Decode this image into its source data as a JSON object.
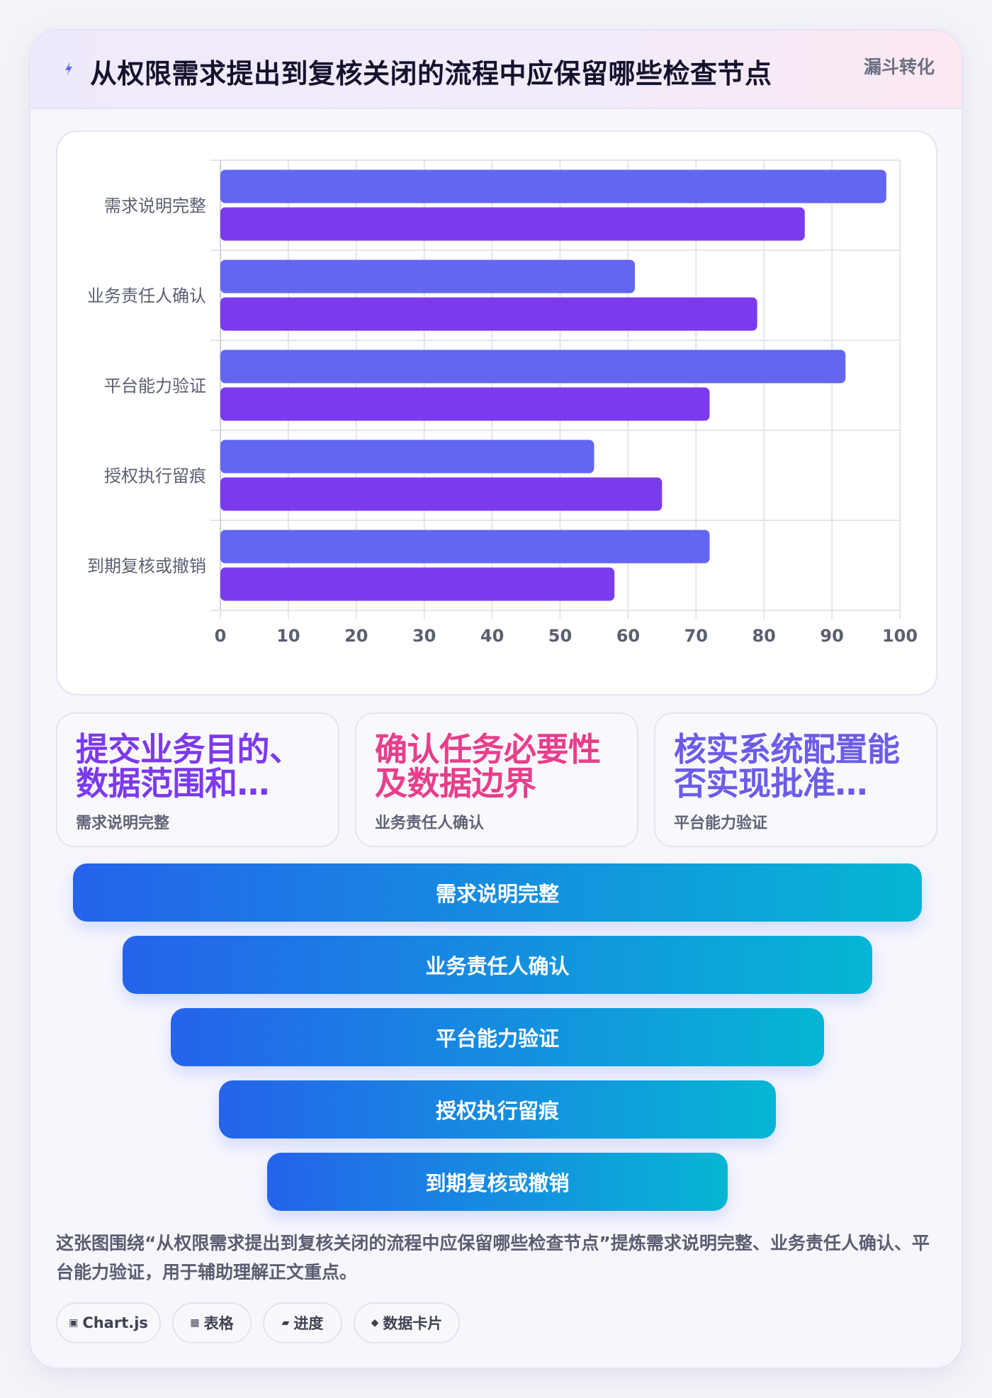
{
  "header": {
    "icon": "bolt-icon",
    "title": "从权限需求提出到复核关闭的流程中应保留哪些检查节点",
    "tag": "漏斗转化"
  },
  "chart_data": {
    "type": "bar",
    "orientation": "horizontal",
    "categories": [
      "需求说明完整",
      "业务责任人确认",
      "平台能力验证",
      "授权执行留痕",
      "到期复核或撤销"
    ],
    "series": [
      {
        "values": [
          98,
          61,
          92,
          55,
          72
        ],
        "color": "#6366f1"
      },
      {
        "values": [
          86,
          79,
          72,
          65,
          58
        ],
        "color": "#7c3aed"
      }
    ],
    "xlim": [
      0,
      100
    ],
    "x_ticks": [
      0,
      10,
      20,
      30,
      40,
      50,
      60,
      70,
      80,
      90,
      100
    ],
    "grid": true,
    "legend": "none"
  },
  "stats": [
    {
      "value": "提交业务目的、数据范围和…",
      "label": "需求说明完整",
      "color": "#7c3aed"
    },
    {
      "value": "确认任务必要性及数据边界",
      "label": "业务责任人确认",
      "color": "#e83e8c"
    },
    {
      "value": "核实系统配置能否实现批准…",
      "label": "平台能力验证",
      "color": "#6d5ce8"
    }
  ],
  "funnel": {
    "steps": [
      "需求说明完整",
      "业务责任人确认",
      "平台能力验证",
      "授权执行留痕",
      "到期复核或撤销"
    ],
    "gradient": [
      "#2563eb",
      "#06b6d4"
    ]
  },
  "summary": "这张图围绕“从权限需求提出到复核关闭的流程中应保留哪些检查节点”提炼需求说明完整、业务责任人确认、平台能力验证，用于辅助理解正文重点。",
  "pills": [
    {
      "icon": "chart-icon",
      "glyph": "▣",
      "label": "Chart.js"
    },
    {
      "icon": "table-icon",
      "glyph": "▦",
      "label": "表格"
    },
    {
      "icon": "progress-icon",
      "glyph": "▰",
      "label": "进度"
    },
    {
      "icon": "diamond-icon",
      "glyph": "◆",
      "label": "数据卡片"
    }
  ]
}
